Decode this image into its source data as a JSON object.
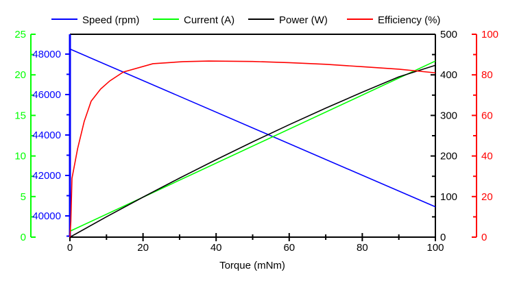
{
  "chart_data": {
    "type": "line",
    "xlabel": "Torque (mNm)",
    "xlim": [
      0,
      100
    ],
    "xticks": [
      0,
      20,
      40,
      60,
      80,
      100
    ],
    "legend_position": "top",
    "grid": false,
    "axes": {
      "current": {
        "range": [
          0,
          25
        ],
        "ticks": [
          0,
          5,
          10,
          15,
          20,
          25
        ],
        "color": "#00ff00",
        "side": "left-outer"
      },
      "speed": {
        "range": [
          38950,
          48980
        ],
        "ticks": [
          40000,
          42000,
          44000,
          46000,
          48000
        ],
        "color": "#0000ff",
        "side": "left-inner"
      },
      "power": {
        "range": [
          0,
          500
        ],
        "ticks": [
          0,
          100,
          200,
          300,
          400,
          500
        ],
        "color": "#000000",
        "side": "right-inner"
      },
      "efficiency": {
        "range": [
          0,
          100
        ],
        "ticks": [
          0,
          20,
          40,
          60,
          80,
          100
        ],
        "color": "#ff0000",
        "side": "right-outer"
      }
    },
    "series": [
      {
        "name": "Speed (rpm)",
        "axis": "speed",
        "color": "#0000ff",
        "x": [
          0,
          100
        ],
        "y": [
          48250,
          40450
        ]
      },
      {
        "name": "Current (A)",
        "axis": "current",
        "color": "#00ff00",
        "x": [
          0,
          100
        ],
        "y": [
          0.73,
          21.7
        ]
      },
      {
        "name": "Power (W)",
        "axis": "power",
        "color": "#000000",
        "x": [
          0,
          10,
          20,
          30,
          40,
          50,
          60,
          70,
          80,
          90,
          100
        ],
        "y": [
          0,
          50.1,
          98.6,
          145.5,
          190.9,
          234.8,
          277.1,
          318.0,
          357.3,
          395.1,
          423.6
        ]
      },
      {
        "name": "Efficiency (%)",
        "axis": "efficiency",
        "color": "#ff0000",
        "x": [
          0,
          0.25,
          0.56,
          2.1,
          3.9,
          5.8,
          8.4,
          10.9,
          14.6,
          22.7,
          31,
          38,
          50,
          60,
          70,
          80,
          90,
          100
        ],
        "y": [
          0,
          7.8,
          29,
          43.6,
          57,
          67,
          73,
          77,
          81.4,
          85.5,
          86.5,
          86.8,
          86.6,
          86,
          85.2,
          84,
          82.8,
          81
        ]
      }
    ]
  }
}
